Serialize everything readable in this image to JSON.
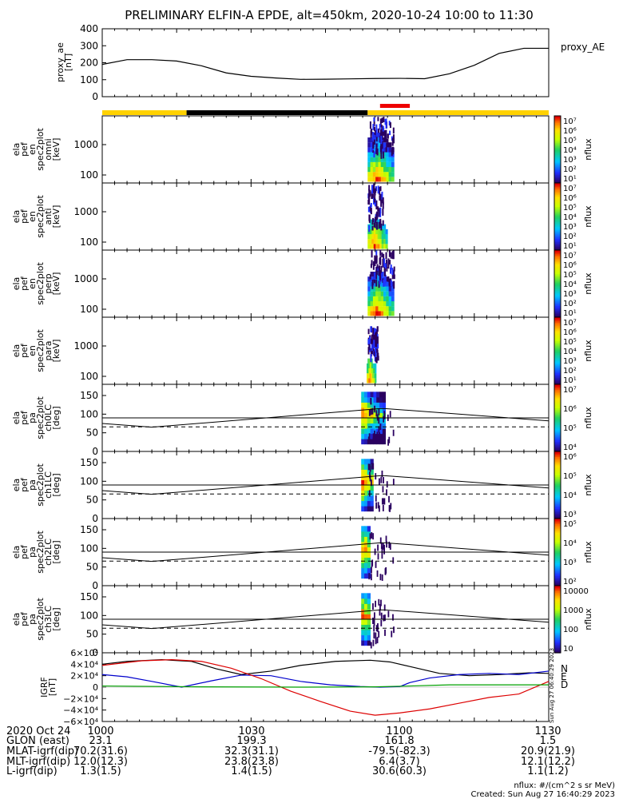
{
  "title": "PRELIMINARY ELFIN-A EPDE, alt=450km, 2020-10-24 10:00 to 11:30",
  "top_panel": {
    "ylabel": [
      "proxy_ae",
      "[nT]"
    ],
    "yticks": [
      "400",
      "300",
      "200",
      "100",
      "0"
    ],
    "legend": "proxy_AE"
  },
  "energy_panels": [
    {
      "ylabel": [
        "ela",
        "pef",
        "en",
        "spec2plot",
        "omni",
        "[keV]"
      ],
      "yticks": [
        "1000",
        "100"
      ]
    },
    {
      "ylabel": [
        "ela",
        "pef",
        "en",
        "spec2plot",
        "anti",
        "[keV]"
      ],
      "yticks": [
        "1000",
        "100"
      ]
    },
    {
      "ylabel": [
        "ela",
        "pef",
        "en",
        "spec2plot",
        "perp",
        "[keV]"
      ],
      "yticks": [
        "1000",
        "100"
      ]
    },
    {
      "ylabel": [
        "ela",
        "pef",
        "en",
        "spec2plot",
        "para",
        "[keV]"
      ],
      "yticks": [
        "1000",
        "100"
      ]
    }
  ],
  "pa_panels": [
    {
      "ylabel": [
        "ela",
        "pef",
        "pa",
        "spec2plot",
        "ch0LC",
        "[deg]"
      ],
      "yticks": [
        "150",
        "100",
        "50",
        "0"
      ]
    },
    {
      "ylabel": [
        "ela",
        "pef",
        "pa",
        "spec2plot",
        "ch1LC",
        "[deg]"
      ],
      "yticks": [
        "150",
        "100",
        "50",
        "0"
      ]
    },
    {
      "ylabel": [
        "ela",
        "pef",
        "pa",
        "spec2plot",
        "ch2LC",
        "[deg]"
      ],
      "yticks": [
        "150",
        "100",
        "50",
        "0"
      ]
    },
    {
      "ylabel": [
        "ela",
        "pef",
        "pa",
        "spec2plot",
        "ch3LC",
        "[deg]"
      ],
      "yticks": [
        "150",
        "100",
        "50",
        "0"
      ]
    }
  ],
  "colorbars": [
    {
      "label": "nflux",
      "ticks": [
        "10⁷",
        "10⁶",
        "10⁵",
        "10⁴",
        "10³",
        "10²",
        "10¹"
      ]
    },
    {
      "label": "nflux",
      "ticks": [
        "10⁷",
        "10⁶",
        "10⁵",
        "10⁴",
        "10³",
        "10²",
        "10¹"
      ]
    },
    {
      "label": "nflux",
      "ticks": [
        "10⁷",
        "10⁶",
        "10⁵",
        "10⁴",
        "10³",
        "10²",
        "10¹"
      ]
    },
    {
      "label": "nflux",
      "ticks": [
        "10⁷",
        "10⁶",
        "10⁵",
        "10⁴",
        "10³",
        "10²",
        "10¹"
      ]
    },
    {
      "label": "nflux",
      "ticks": [
        "10⁷",
        "10⁶",
        "10⁵",
        "10⁴"
      ]
    },
    {
      "label": "nflux",
      "ticks": [
        "10⁶",
        "10⁵",
        "10⁴",
        "10³"
      ]
    },
    {
      "label": "nflux",
      "ticks": [
        "10⁵",
        "10⁴",
        "10³",
        "10²"
      ]
    },
    {
      "label": "nflux",
      "ticks": [
        "10000",
        "1000",
        "100",
        "10"
      ]
    }
  ],
  "igrf_panel": {
    "ylabel": [
      "IGRF",
      "[nT]"
    ],
    "yticks": [
      "6×10⁴",
      "4×10⁴",
      "2×10⁴",
      "0",
      "−2×10⁴",
      "−4×10⁴",
      "−6×10⁴"
    ],
    "legend": [
      "N",
      "E",
      "D"
    ],
    "stamp": "Sun Aug 27 06:40:29 2023",
    "colors": {
      "N": "#000000",
      "E": "#0000cc",
      "D": "#dd0000",
      "extra": "#00a000"
    }
  },
  "footer": {
    "rows": [
      [
        "2020 Oct 24",
        "1000",
        "1030",
        "1100",
        "1130"
      ],
      [
        "GLON (east)",
        "23.1",
        "199.3",
        "161.8",
        "1.5"
      ],
      [
        "MLAT-igrf(dip)",
        "70.2(31.6)",
        "32.3(31.1)",
        "-79.5(-82.3)",
        "20.9(21.9)"
      ],
      [
        "MLT-igrf(dip)",
        "12.0(12.3)",
        "23.8(23.8)",
        "6.4(3.7)",
        "12.1(12.2)"
      ],
      [
        "L-igrf(dip)",
        "1.3(1.5)",
        "1.4(1.5)",
        "30.6(60.3)",
        "1.1(1.2)"
      ]
    ],
    "units": "nflux: #/(cm^2 s sr MeV)",
    "created": "Created: Sun Aug 27 16:40:29 2023"
  },
  "chart_data": {
    "type": "line",
    "title": "PRELIMINARY ELFIN-A EPDE, alt=450km, 2020-10-24 10:00 to 11:30",
    "x_ticks": [
      "1000",
      "1030",
      "1100",
      "1130"
    ],
    "xlim_minutes": [
      0,
      90
    ],
    "proxy_ae": {
      "ylim": [
        0,
        400
      ],
      "x": [
        0,
        5,
        10,
        15,
        20,
        25,
        30,
        35,
        40,
        45,
        50,
        55,
        60,
        65,
        70,
        75,
        80,
        85,
        90
      ],
      "y": [
        190,
        218,
        218,
        210,
        182,
        140,
        120,
        110,
        102,
        103,
        105,
        107,
        108,
        106,
        135,
        185,
        255,
        285,
        285
      ]
    },
    "science_zone_minutes": [
      56,
      62
    ],
    "mission_bar": [
      {
        "from": 0,
        "to": 17,
        "color": "#ffd200"
      },
      {
        "from": 17,
        "to": 53.5,
        "color": "#000000"
      },
      {
        "from": 53.5,
        "to": 90,
        "color": "#ffd200"
      }
    ],
    "loss_cone": {
      "ylim": [
        0,
        180
      ],
      "x": [
        0,
        10,
        56,
        57,
        90
      ],
      "y": [
        75,
        65,
        115,
        115,
        82
      ],
      "dashed_y": 66
    },
    "igrf": {
      "ylim": [
        -60000,
        60000
      ],
      "series": [
        {
          "name": "N",
          "x": [
            0,
            5,
            12,
            18,
            23,
            28,
            34,
            40,
            47,
            54,
            58,
            62,
            68,
            74,
            80,
            86,
            90
          ],
          "y": [
            40000,
            45000,
            48000,
            45000,
            32000,
            22000,
            28000,
            38000,
            45000,
            47000,
            44000,
            36000,
            24000,
            20000,
            22000,
            25000,
            24000
          ]
        },
        {
          "name": "E",
          "x": [
            0,
            5,
            10,
            16,
            22,
            28,
            34,
            40,
            46,
            52,
            56,
            60,
            62,
            66,
            72,
            78,
            84,
            90
          ],
          "y": [
            22000,
            18000,
            10000,
            0,
            11000,
            21000,
            20000,
            10000,
            4000,
            1000,
            0,
            1000,
            8000,
            16000,
            22000,
            24000,
            22000,
            28000
          ]
        },
        {
          "name": "D",
          "x": [
            0,
            8,
            14,
            20,
            26,
            32,
            38,
            44,
            50,
            55,
            60,
            66,
            72,
            78,
            84,
            90
          ],
          "y": [
            38000,
            46000,
            48000,
            45000,
            33000,
            15000,
            -7000,
            -25000,
            -42000,
            -49000,
            -45000,
            -38000,
            -28000,
            -18000,
            -12000,
            10000
          ]
        },
        {
          "name": "extra",
          "x": [
            0,
            20,
            40,
            55,
            62,
            70,
            80,
            90
          ],
          "y": [
            2000,
            500,
            0,
            500,
            2000,
            4000,
            4000,
            4000
          ]
        }
      ]
    }
  }
}
